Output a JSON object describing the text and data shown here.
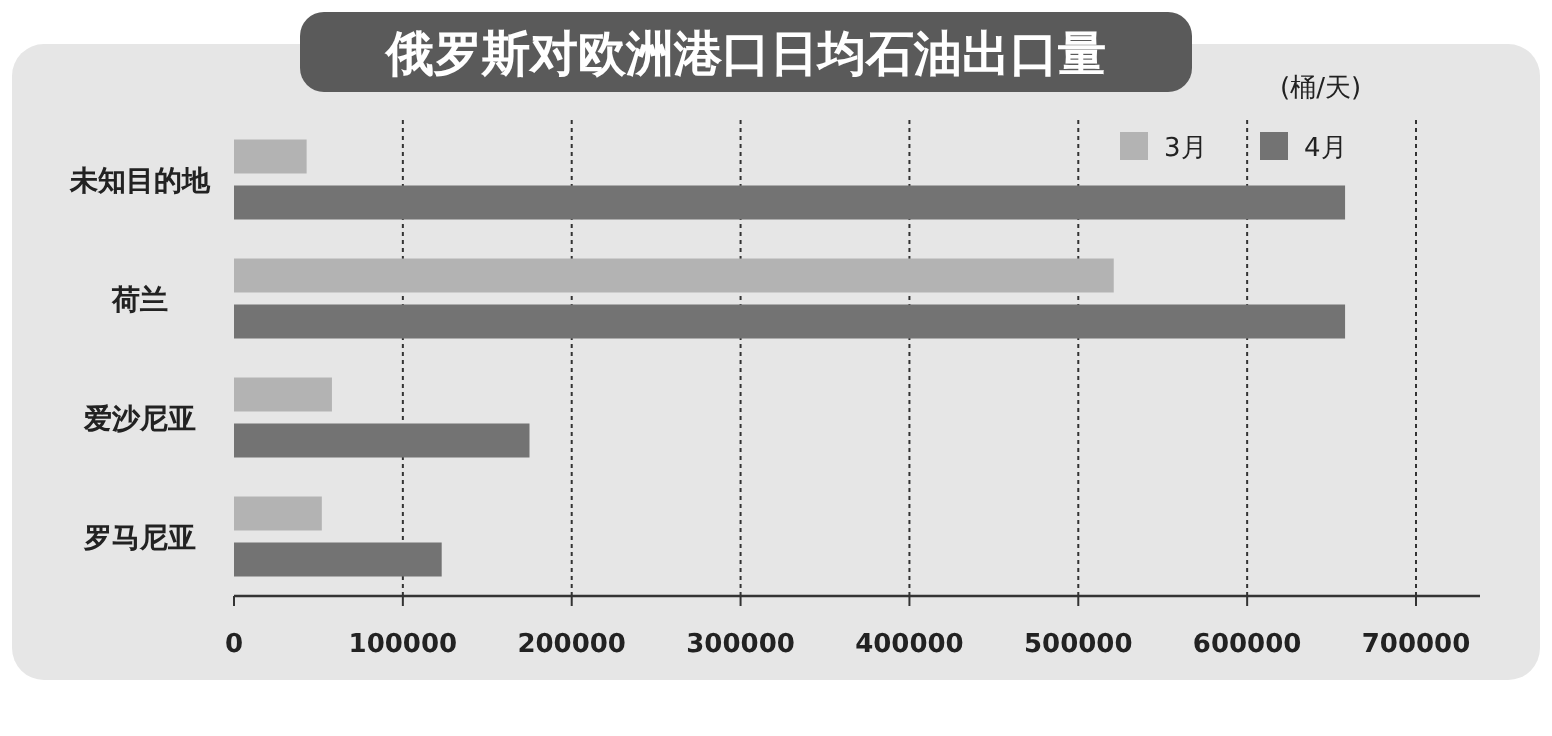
{
  "chart_data": {
    "type": "bar",
    "orientation": "horizontal",
    "title": "俄罗斯对欧洲港口日均石油出口量",
    "annotations": [
      "(桶/天)"
    ],
    "categories": [
      "未知目的地",
      "荷兰",
      "爱沙尼亚",
      "罗马尼亚"
    ],
    "series": [
      {
        "name": "3月",
        "color": "#b3b3b3",
        "values": [
          43000,
          521000,
          58000,
          52000
        ]
      },
      {
        "name": "4月",
        "color": "#737373",
        "values": [
          658000,
          658000,
          175000,
          123000
        ]
      }
    ],
    "xlim": [
      0,
      700000
    ],
    "xticks": [
      0,
      100000,
      200000,
      300000,
      400000,
      500000,
      600000,
      700000
    ],
    "grid": "x",
    "legend": "top right"
  }
}
